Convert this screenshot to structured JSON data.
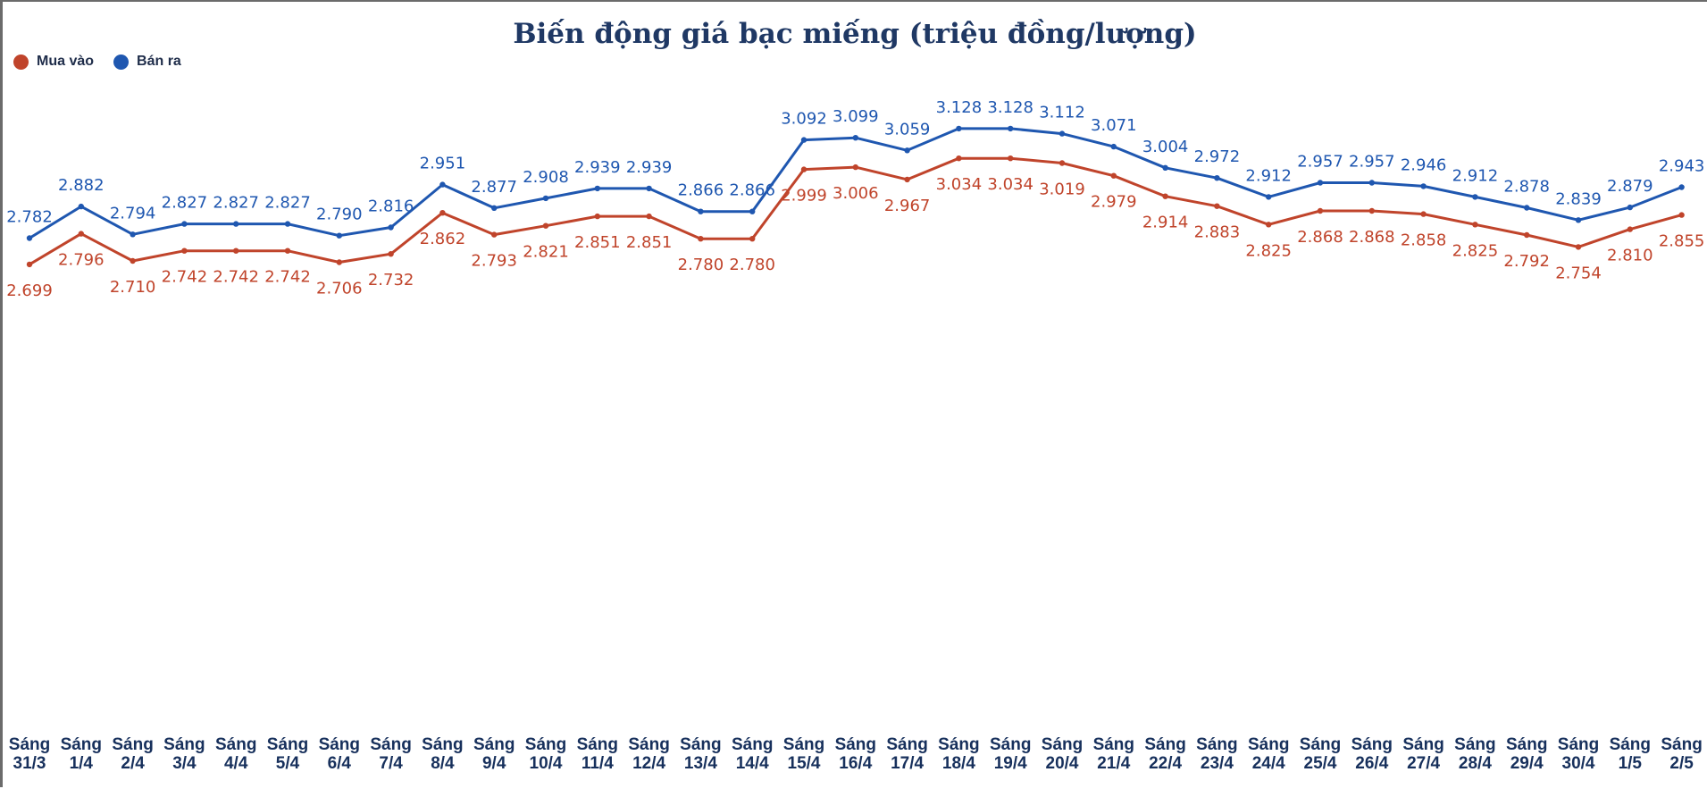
{
  "chart_data": {
    "type": "line",
    "title": "Biến động giá bạc miếng (triệu đồng/lượng)",
    "xlabel": "",
    "ylabel": "",
    "ylim": [
      2.3,
      3.7
    ],
    "legend_position": "top-left",
    "grid": false,
    "categories": [
      [
        "Sáng",
        "31/3"
      ],
      [
        "Sáng",
        "1/4"
      ],
      [
        "Sáng",
        "2/4"
      ],
      [
        "Sáng",
        "3/4"
      ],
      [
        "Sáng",
        "4/4"
      ],
      [
        "Sáng",
        "5/4"
      ],
      [
        "Sáng",
        "6/4"
      ],
      [
        "Sáng",
        "7/4"
      ],
      [
        "Sáng",
        "8/4"
      ],
      [
        "Sáng",
        "9/4"
      ],
      [
        "Sáng",
        "10/4"
      ],
      [
        "Sáng",
        "11/4"
      ],
      [
        "Sáng",
        "12/4"
      ],
      [
        "Sáng",
        "13/4"
      ],
      [
        "Sáng",
        "14/4"
      ],
      [
        "Sáng",
        "15/4"
      ],
      [
        "Sáng",
        "16/4"
      ],
      [
        "Sáng",
        "17/4"
      ],
      [
        "Sáng",
        "18/4"
      ],
      [
        "Sáng",
        "19/4"
      ],
      [
        "Sáng",
        "20/4"
      ],
      [
        "Sáng",
        "21/4"
      ],
      [
        "Sáng",
        "22/4"
      ],
      [
        "Sáng",
        "23/4"
      ],
      [
        "Sáng",
        "24/4"
      ],
      [
        "Sáng",
        "25/4"
      ],
      [
        "Sáng",
        "26/4"
      ],
      [
        "Sáng",
        "27/4"
      ],
      [
        "Sáng",
        "28/4"
      ],
      [
        "Sáng",
        "29/4"
      ],
      [
        "Sáng",
        "30/4"
      ],
      [
        "Sáng",
        "1/5"
      ],
      [
        "Sáng",
        "2/5"
      ]
    ],
    "series": [
      {
        "name": "Mua vào",
        "color": "#c0442b",
        "label_position": "below",
        "values": [
          2.699,
          2.796,
          2.71,
          2.742,
          2.742,
          2.742,
          2.706,
          2.732,
          2.862,
          2.793,
          2.821,
          2.851,
          2.851,
          2.78,
          2.78,
          2.999,
          3.006,
          2.967,
          3.034,
          3.034,
          3.019,
          2.979,
          2.914,
          2.883,
          2.825,
          2.868,
          2.868,
          2.858,
          2.825,
          2.792,
          2.754,
          2.81,
          2.855
        ],
        "labels": [
          "2.699",
          "2.796",
          "2.710",
          "2.742",
          "2.742",
          "2.742",
          "2.706",
          "2.732",
          "2.862",
          "2.793",
          "2.821",
          "2.851",
          "2.851",
          "2.780",
          "2.780",
          "2.999",
          "3.006",
          "2.967",
          "3.034",
          "3.034",
          "3.019",
          "2.979",
          "2.914",
          "2.883",
          "2.825",
          "2.868",
          "2.868",
          "2.858",
          "2.825",
          "2.792",
          "2.754",
          "2.810",
          "2.855"
        ]
      },
      {
        "name": "Bán ra",
        "color": "#1f57b0",
        "label_position": "above",
        "values": [
          2.782,
          2.882,
          2.794,
          2.827,
          2.827,
          2.827,
          2.79,
          2.816,
          2.951,
          2.877,
          2.908,
          2.939,
          2.939,
          2.866,
          2.866,
          3.092,
          3.099,
          3.059,
          3.128,
          3.128,
          3.112,
          3.071,
          3.004,
          2.972,
          2.912,
          2.957,
          2.957,
          2.946,
          2.912,
          2.878,
          2.839,
          2.879,
          2.943
        ],
        "labels": [
          "2.782",
          "2.882",
          "2.794",
          "2.827",
          "2.827",
          "2.827",
          "2.790",
          "2.816",
          "2.951",
          "2.877",
          "2.908",
          "2.939",
          "2.939",
          "2.866",
          "2.866",
          "3.092",
          "3.099",
          "3.059",
          "3.128",
          "3.128",
          "3.112",
          "3.071",
          "3.004",
          "2.972",
          "2.912",
          "2.957",
          "2.957",
          "2.946",
          "2.912",
          "2.878",
          "2.839",
          "2.879",
          "2.943"
        ]
      }
    ]
  },
  "legend_dot_colors": [
    "#c0442b",
    "#1f57b0"
  ]
}
